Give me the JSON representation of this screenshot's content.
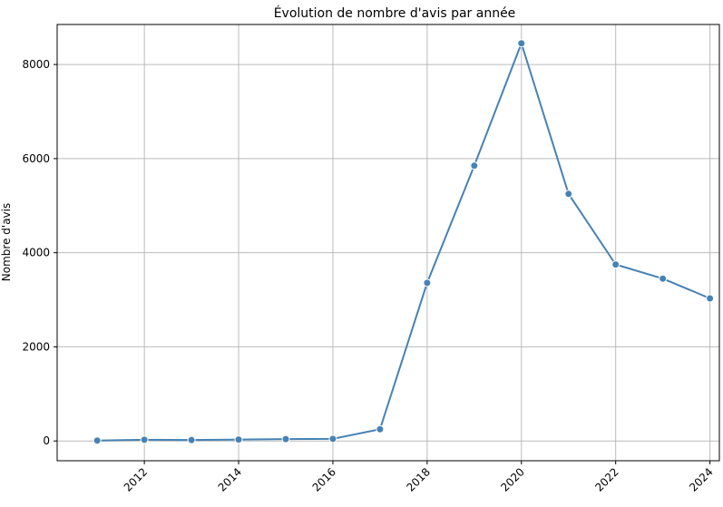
{
  "chart_data": {
    "type": "line",
    "title": "Évolution de nombre d'avis par année",
    "xlabel": "",
    "ylabel": "Nombre d'avis",
    "x": [
      2011,
      2012,
      2013,
      2014,
      2015,
      2016,
      2017,
      2018,
      2019,
      2020,
      2021,
      2022,
      2023,
      2024
    ],
    "series": [
      {
        "values": [
          10,
          25,
          20,
          30,
          40,
          45,
          250,
          3360,
          5850,
          8450,
          5250,
          3750,
          3450,
          3030
        ],
        "color": "#4682b4",
        "marker": "circle"
      }
    ],
    "xlim": [
      2010.15,
      2024.2
    ],
    "ylim": [
      -420,
      8850
    ],
    "xticks": [
      2012,
      2014,
      2016,
      2018,
      2020,
      2022,
      2024
    ],
    "yticks": [
      0,
      2000,
      4000,
      6000,
      8000
    ],
    "xtick_labels": [
      "2012",
      "2014",
      "2016",
      "2018",
      "2020",
      "2022",
      "2024"
    ],
    "ytick_labels": [
      "0",
      "2000",
      "4000",
      "6000",
      "8000"
    ],
    "xtick_rotation": 45,
    "grid": true,
    "legend": "none"
  }
}
